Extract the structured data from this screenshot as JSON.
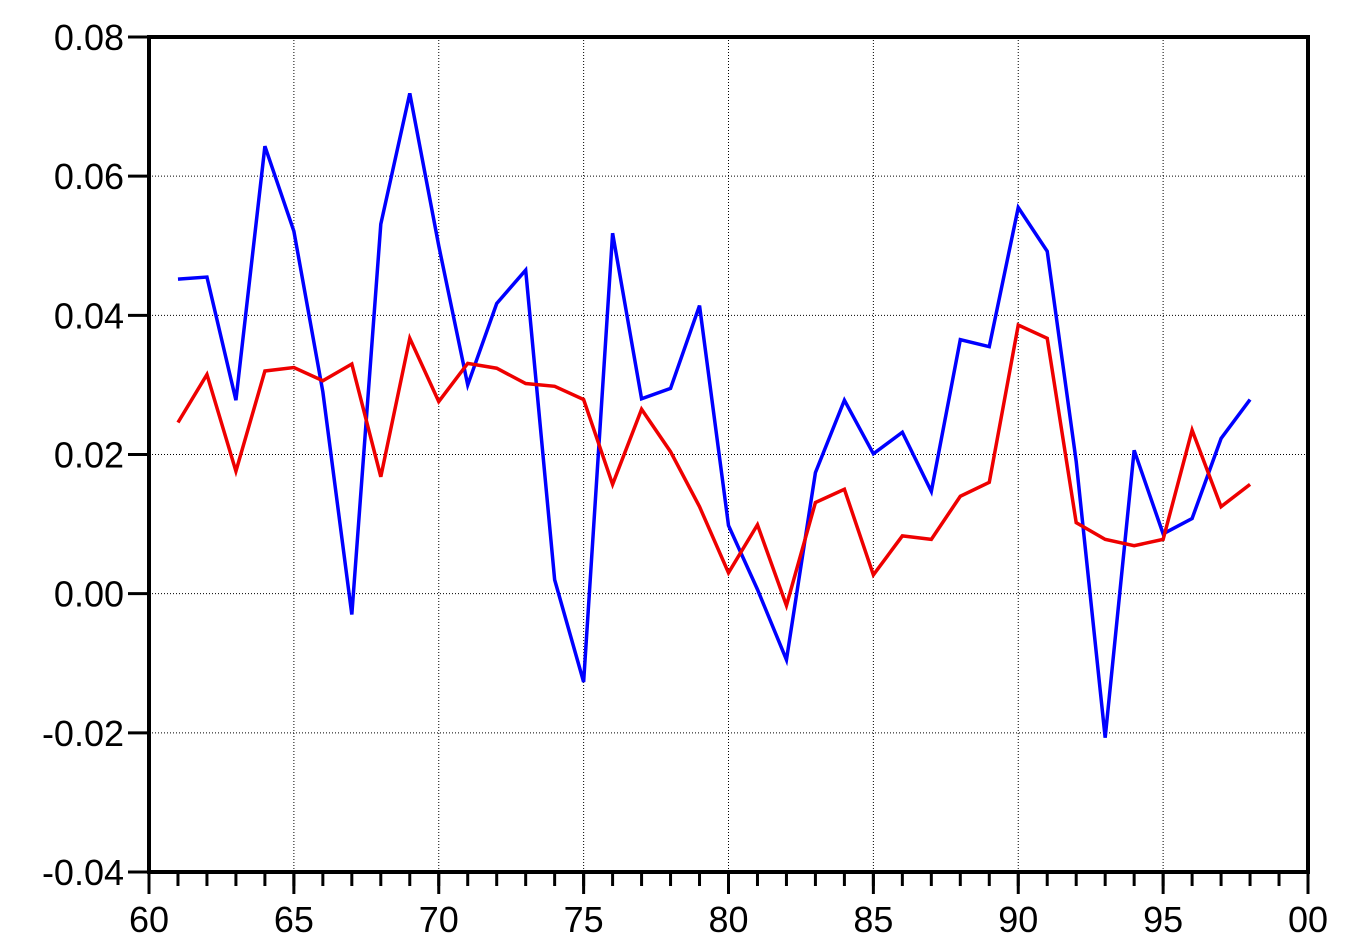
{
  "chart_data": {
    "type": "line",
    "x": [
      61,
      62,
      63,
      64,
      65,
      66,
      67,
      68,
      69,
      70,
      71,
      72,
      73,
      74,
      75,
      76,
      77,
      78,
      79,
      80,
      81,
      82,
      83,
      84,
      85,
      86,
      87,
      88,
      89,
      90,
      91,
      92,
      93,
      94,
      95,
      96,
      97,
      98
    ],
    "series": [
      {
        "color": "#0000ff",
        "values": [
          0.0452,
          0.0455,
          0.0278,
          0.0643,
          0.0521,
          0.029,
          -0.003,
          0.0531,
          0.0719,
          0.05,
          0.03,
          0.0417,
          0.0465,
          0.002,
          -0.0127,
          0.0518,
          0.028,
          0.0295,
          0.0414,
          0.0098,
          0.0006,
          -0.0095,
          0.0174,
          0.0278,
          0.0201,
          0.0232,
          0.0147,
          0.0365,
          0.0355,
          0.0555,
          0.0492,
          0.019,
          -0.0207,
          0.0206,
          0.0086,
          0.0108,
          0.0223,
          0.0279
        ]
      },
      {
        "color": "#ee0000",
        "values": [
          0.0246,
          0.0315,
          0.0176,
          0.032,
          0.0325,
          0.0306,
          0.033,
          0.0168,
          0.0367,
          0.0276,
          0.0331,
          0.0324,
          0.0302,
          0.0298,
          0.0279,
          0.0157,
          0.0265,
          0.0204,
          0.0125,
          0.003,
          0.0099,
          -0.0017,
          0.0131,
          0.015,
          0.0027,
          0.0083,
          0.0078,
          0.014,
          0.016,
          0.0386,
          0.0367,
          0.0102,
          0.0078,
          0.0069,
          0.0078,
          0.0235,
          0.0125,
          0.0157
        ]
      }
    ],
    "xlim": [
      60,
      100
    ],
    "xticks": [
      60,
      65,
      70,
      75,
      80,
      85,
      90,
      95,
      {
        "value": 100,
        "label": "00"
      }
    ],
    "ylim": [
      -0.04,
      0.08
    ],
    "yticks": [
      -0.04,
      -0.02,
      {
        "value": 0,
        "label": "0.00"
      },
      0.02,
      0.04,
      0.06,
      0.08
    ],
    "grid": true
  }
}
